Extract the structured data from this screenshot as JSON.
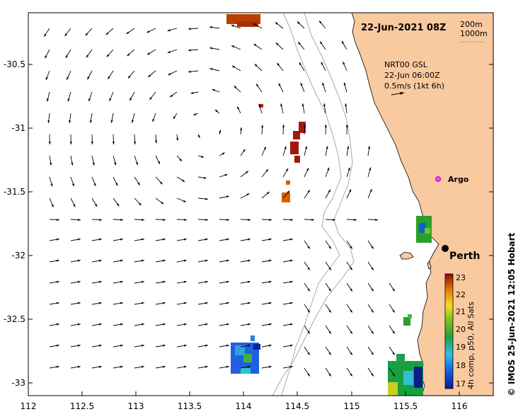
{
  "map": {
    "date_label": "22-Jun-2021 08Z",
    "isobath_labels": [
      "200m",
      "1000m"
    ],
    "current_product": {
      "name": "NRT00 GSL",
      "time": "22-Jun 06:00Z",
      "scale": "0.5m/s (1kt 6h)"
    },
    "places": [
      {
        "name": "Argo",
        "marker": "magenta-circle"
      },
      {
        "name": "Perth",
        "marker": "black-dot"
      }
    ],
    "credit": "IMOS 25-Jun-2021 12:05 Hobart",
    "credit_symbol": "©",
    "colorbar": {
      "label": "4h comp, p50, All Sats",
      "ticks": [
        "23",
        "22",
        "21",
        "20",
        "19",
        "18",
        "17"
      ]
    },
    "x_ticks": [
      "112",
      "112.5",
      "113",
      "113.5",
      "114",
      "114.5",
      "115",
      "115.5",
      "116"
    ],
    "y_ticks": [
      "-30.5",
      "-31",
      "-31.5",
      "-32",
      "-32.5",
      "-33"
    ],
    "colors": {
      "land": "#f9c9a0",
      "isobath": "#a8a8a8",
      "arrow": "#000000"
    }
  }
}
